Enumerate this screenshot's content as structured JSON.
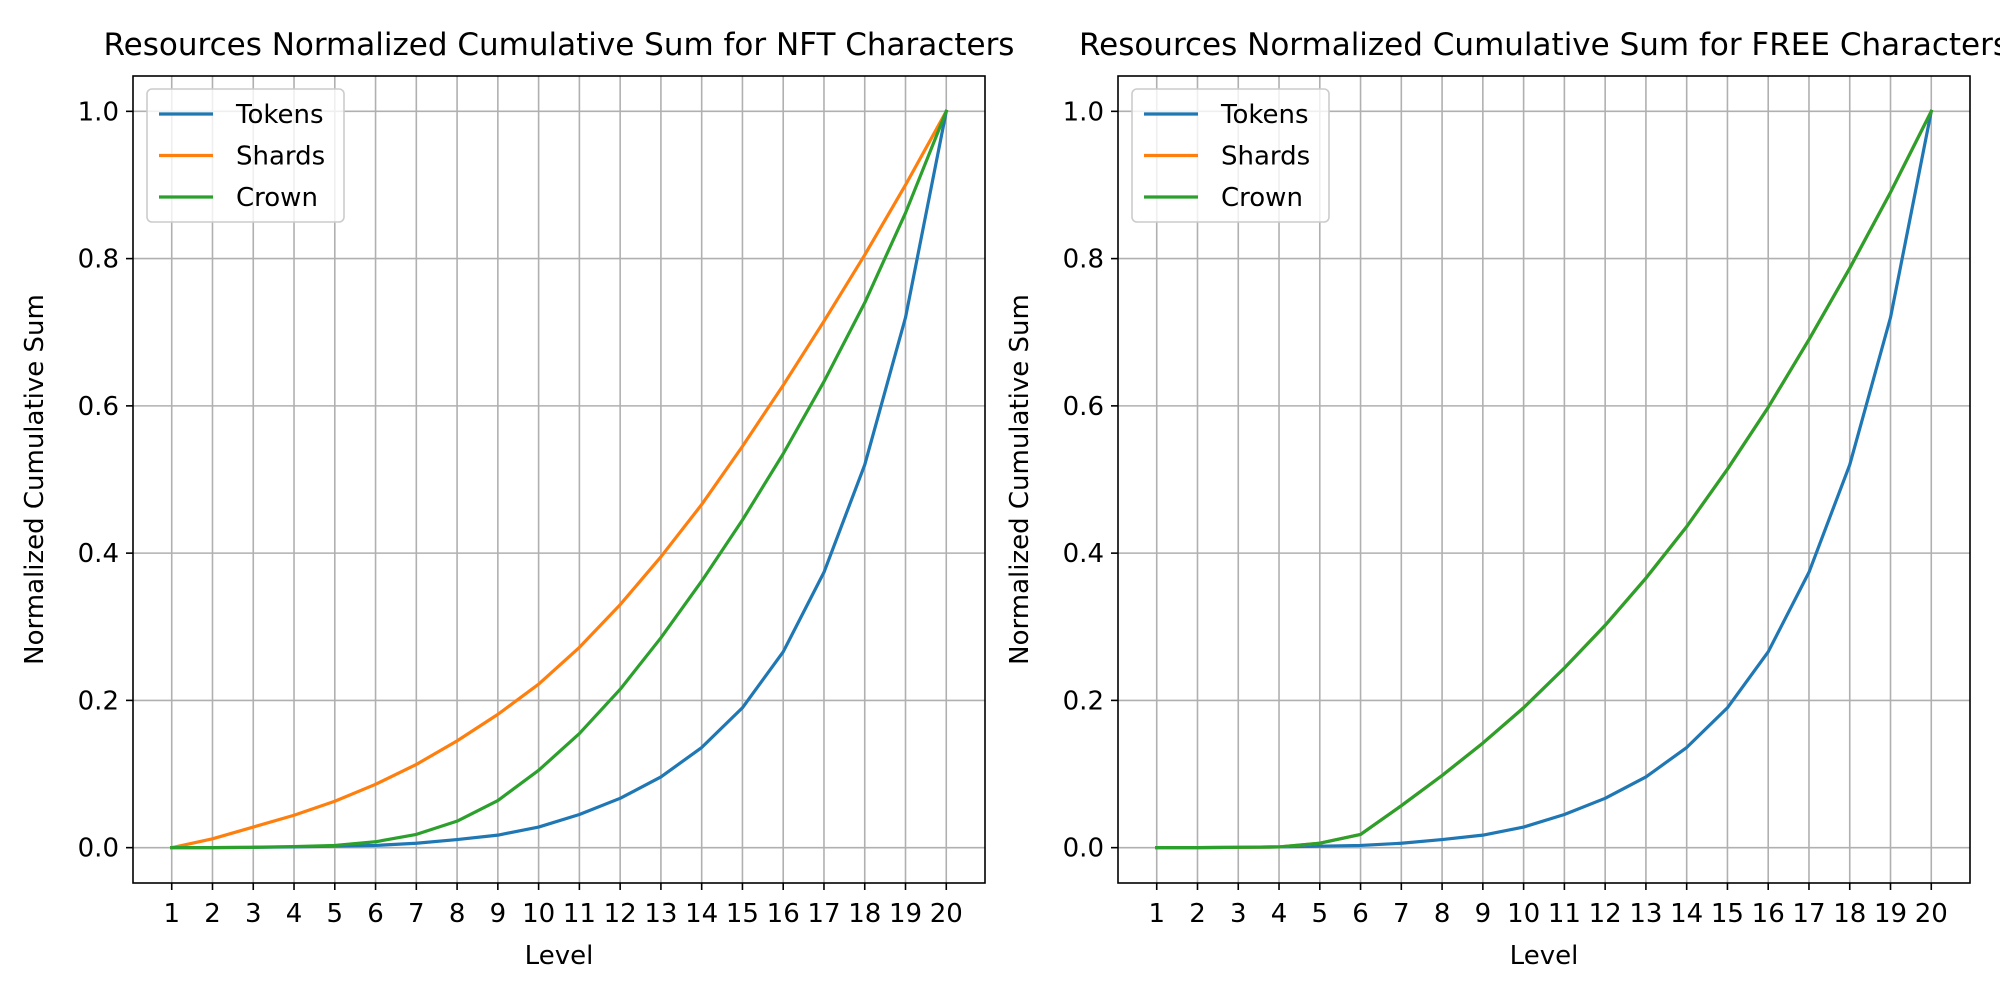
{
  "chart_data": [
    {
      "type": "line",
      "title": "Resources Normalized Cumulative Sum for NFT Characters",
      "xlabel": "Level",
      "ylabel": "Normalized Cumulative Sum",
      "x": [
        1,
        2,
        3,
        4,
        5,
        6,
        7,
        8,
        9,
        10,
        11,
        12,
        13,
        14,
        15,
        16,
        17,
        18,
        19,
        20
      ],
      "xticks": [
        "1",
        "2",
        "3",
        "4",
        "5",
        "6",
        "7",
        "8",
        "9",
        "10",
        "11",
        "12",
        "13",
        "14",
        "15",
        "16",
        "17",
        "18",
        "19",
        "20"
      ],
      "ylim": [
        -0.048,
        1.048
      ],
      "yticks": [
        0.0,
        0.2,
        0.4,
        0.6,
        0.8,
        1.0
      ],
      "ytick_labels": [
        "0.0",
        "0.2",
        "0.4",
        "0.6",
        "0.8",
        "1.0"
      ],
      "grid": true,
      "legend": "top-left",
      "series": [
        {
          "name": "Tokens",
          "color": "#1f77b4",
          "values": [
            0.0,
            0.0,
            0.0005,
            0.001,
            0.002,
            0.003,
            0.006,
            0.011,
            0.017,
            0.028,
            0.045,
            0.067,
            0.096,
            0.136,
            0.19,
            0.266,
            0.374,
            0.52,
            0.72,
            1.0
          ]
        },
        {
          "name": "Shards",
          "color": "#ff7f0e",
          "values": [
            0.0,
            0.012,
            0.028,
            0.044,
            0.063,
            0.086,
            0.113,
            0.145,
            0.181,
            0.222,
            0.272,
            0.33,
            0.395,
            0.466,
            0.545,
            0.628,
            0.715,
            0.805,
            0.9,
            1.0
          ]
        },
        {
          "name": "Crown",
          "color": "#2ca02c",
          "values": [
            0.0,
            0.0,
            0.0005,
            0.0015,
            0.003,
            0.008,
            0.018,
            0.036,
            0.064,
            0.105,
            0.155,
            0.215,
            0.285,
            0.362,
            0.445,
            0.535,
            0.633,
            0.74,
            0.862,
            1.0
          ]
        }
      ]
    },
    {
      "type": "line",
      "title": "Resources Normalized Cumulative Sum for FREE Characters",
      "xlabel": "Level",
      "ylabel": "Normalized Cumulative Sum",
      "x": [
        1,
        2,
        3,
        4,
        5,
        6,
        7,
        8,
        9,
        10,
        11,
        12,
        13,
        14,
        15,
        16,
        17,
        18,
        19,
        20
      ],
      "xticks": [
        "1",
        "2",
        "3",
        "4",
        "5",
        "6",
        "7",
        "8",
        "9",
        "10",
        "11",
        "12",
        "13",
        "14",
        "15",
        "16",
        "17",
        "18",
        "19",
        "20"
      ],
      "ylim": [
        -0.048,
        1.048
      ],
      "yticks": [
        0.0,
        0.2,
        0.4,
        0.6,
        0.8,
        1.0
      ],
      "ytick_labels": [
        "0.0",
        "0.2",
        "0.4",
        "0.6",
        "0.8",
        "1.0"
      ],
      "grid": true,
      "legend": "top-left",
      "series": [
        {
          "name": "Tokens",
          "color": "#1f77b4",
          "values": [
            0.0,
            0.0,
            0.0005,
            0.001,
            0.002,
            0.003,
            0.006,
            0.011,
            0.017,
            0.028,
            0.045,
            0.067,
            0.096,
            0.136,
            0.19,
            0.266,
            0.374,
            0.52,
            0.72,
            1.0
          ]
        },
        {
          "name": "Shards",
          "color": "#ff7f0e",
          "values": [
            0.0,
            0.0,
            0.0005,
            0.001,
            0.006,
            0.018,
            0.057,
            0.098,
            0.142,
            0.19,
            0.244,
            0.302,
            0.366,
            0.436,
            0.514,
            0.598,
            0.69,
            0.787,
            0.89,
            1.0
          ]
        },
        {
          "name": "Crown",
          "color": "#2ca02c",
          "values": [
            0.0,
            0.0,
            0.0005,
            0.001,
            0.006,
            0.018,
            0.057,
            0.098,
            0.142,
            0.19,
            0.244,
            0.302,
            0.366,
            0.436,
            0.514,
            0.598,
            0.69,
            0.787,
            0.89,
            1.0
          ]
        }
      ]
    }
  ]
}
